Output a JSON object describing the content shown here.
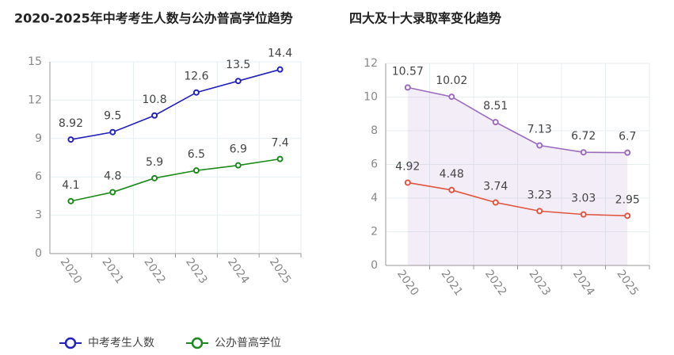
{
  "chart_data": [
    {
      "type": "line",
      "title": "2020-2025年中考考生人数与公办普高学位趋势",
      "categories": [
        "2020",
        "2021",
        "2022",
        "2023",
        "2024",
        "2025"
      ],
      "series": [
        {
          "name": "中考考生人数",
          "color": "#2222bb",
          "values": [
            8.92,
            9.5,
            10.8,
            12.6,
            13.5,
            14.4
          ]
        },
        {
          "name": "公办普高学位",
          "color": "#1a8a1a",
          "values": [
            4.1,
            4.8,
            5.9,
            6.5,
            6.9,
            7.4
          ]
        }
      ],
      "ylim": [
        0,
        15
      ],
      "yticks": [
        0,
        3,
        6,
        9,
        12,
        15
      ],
      "grid": true,
      "legend": "bottom-left"
    },
    {
      "type": "line",
      "title": "四大及十大录取率变化趋势",
      "categories": [
        "2020",
        "2021",
        "2022",
        "2023",
        "2024",
        "2025"
      ],
      "series": [
        {
          "color": "#9b6bbf",
          "area": true,
          "values": [
            10.57,
            10.02,
            8.51,
            7.13,
            6.72,
            6.7
          ]
        },
        {
          "color": "#e0553f",
          "values": [
            4.92,
            4.48,
            3.74,
            3.23,
            3.03,
            2.95
          ]
        }
      ],
      "ylim": [
        0,
        12
      ],
      "yticks": [
        0,
        2,
        4,
        6,
        8,
        10,
        12
      ],
      "grid": true
    }
  ]
}
